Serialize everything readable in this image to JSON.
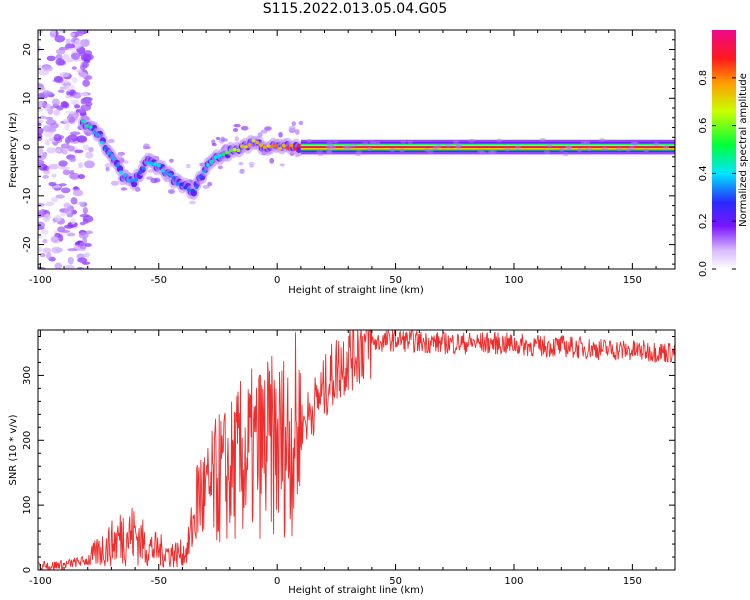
{
  "title": "S115.2022.013.05.04.G05",
  "colors": {
    "snr_line": "#ef2d2d",
    "axis": "#000000"
  },
  "chart_data": [
    {
      "type": "heatmap",
      "xlabel": "Height of straight line (km)",
      "ylabel": "Frequency (Hz)",
      "xlim": [
        -101,
        168
      ],
      "ylim": [
        -25,
        24
      ],
      "xticks": [
        -100,
        -50,
        0,
        50,
        100,
        150
      ],
      "yticks": [
        -20,
        -10,
        0,
        10,
        20
      ],
      "colorbar": {
        "label": "Normalized spectral amplitude",
        "range": [
          0,
          1
        ],
        "ticks": [
          0.0,
          0.2,
          0.4,
          0.6,
          0.8
        ]
      },
      "ridge": {
        "x": [
          -82,
          -76,
          -70,
          -65,
          -60,
          -55,
          -50,
          -45,
          -40,
          -35,
          -30,
          -25,
          -20,
          -15,
          -10,
          -5,
          0,
          5,
          10,
          168
        ],
        "frequency": [
          5,
          3,
          -2,
          -6,
          -7,
          -3,
          -4,
          -6,
          -8,
          -9,
          -4,
          -2,
          -1,
          0,
          1,
          0,
          0,
          0,
          0,
          0
        ],
        "amplitude": [
          0.45,
          0.4,
          0.35,
          0.4,
          0.35,
          0.4,
          0.45,
          0.35,
          0.3,
          0.3,
          0.35,
          0.45,
          0.6,
          0.7,
          0.7,
          0.75,
          0.8,
          0.85,
          1.0,
          1.0
        ]
      }
    },
    {
      "type": "line",
      "xlabel": "Height of straight line (km)",
      "ylabel": "SNR (10 * v/v)",
      "xlim": [
        -101,
        168
      ],
      "ylim": [
        0,
        370
      ],
      "xticks": [
        -100,
        -50,
        0,
        50,
        100,
        150
      ],
      "yticks": [
        0,
        100,
        200,
        300
      ],
      "series": [
        {
          "x": [
            -101,
            -90,
            -80,
            -75,
            -70,
            -65,
            -60,
            -55,
            -50,
            -45,
            -40,
            -38,
            -35,
            -33,
            -30,
            -25,
            -20,
            -15,
            -10,
            -5,
            0,
            5,
            10,
            15,
            20,
            25,
            30,
            35,
            40,
            50,
            60,
            70,
            80,
            90,
            100,
            110,
            120,
            130,
            140,
            150,
            160,
            168
          ],
          "values": [
            5,
            8,
            15,
            30,
            40,
            55,
            55,
            35,
            30,
            25,
            25,
            30,
            80,
            120,
            110,
            140,
            150,
            170,
            180,
            190,
            190,
            200,
            220,
            250,
            280,
            310,
            330,
            345,
            350,
            355,
            352,
            350,
            350,
            350,
            348,
            345,
            345,
            342,
            340,
            338,
            337,
            335
          ]
        }
      ]
    }
  ]
}
